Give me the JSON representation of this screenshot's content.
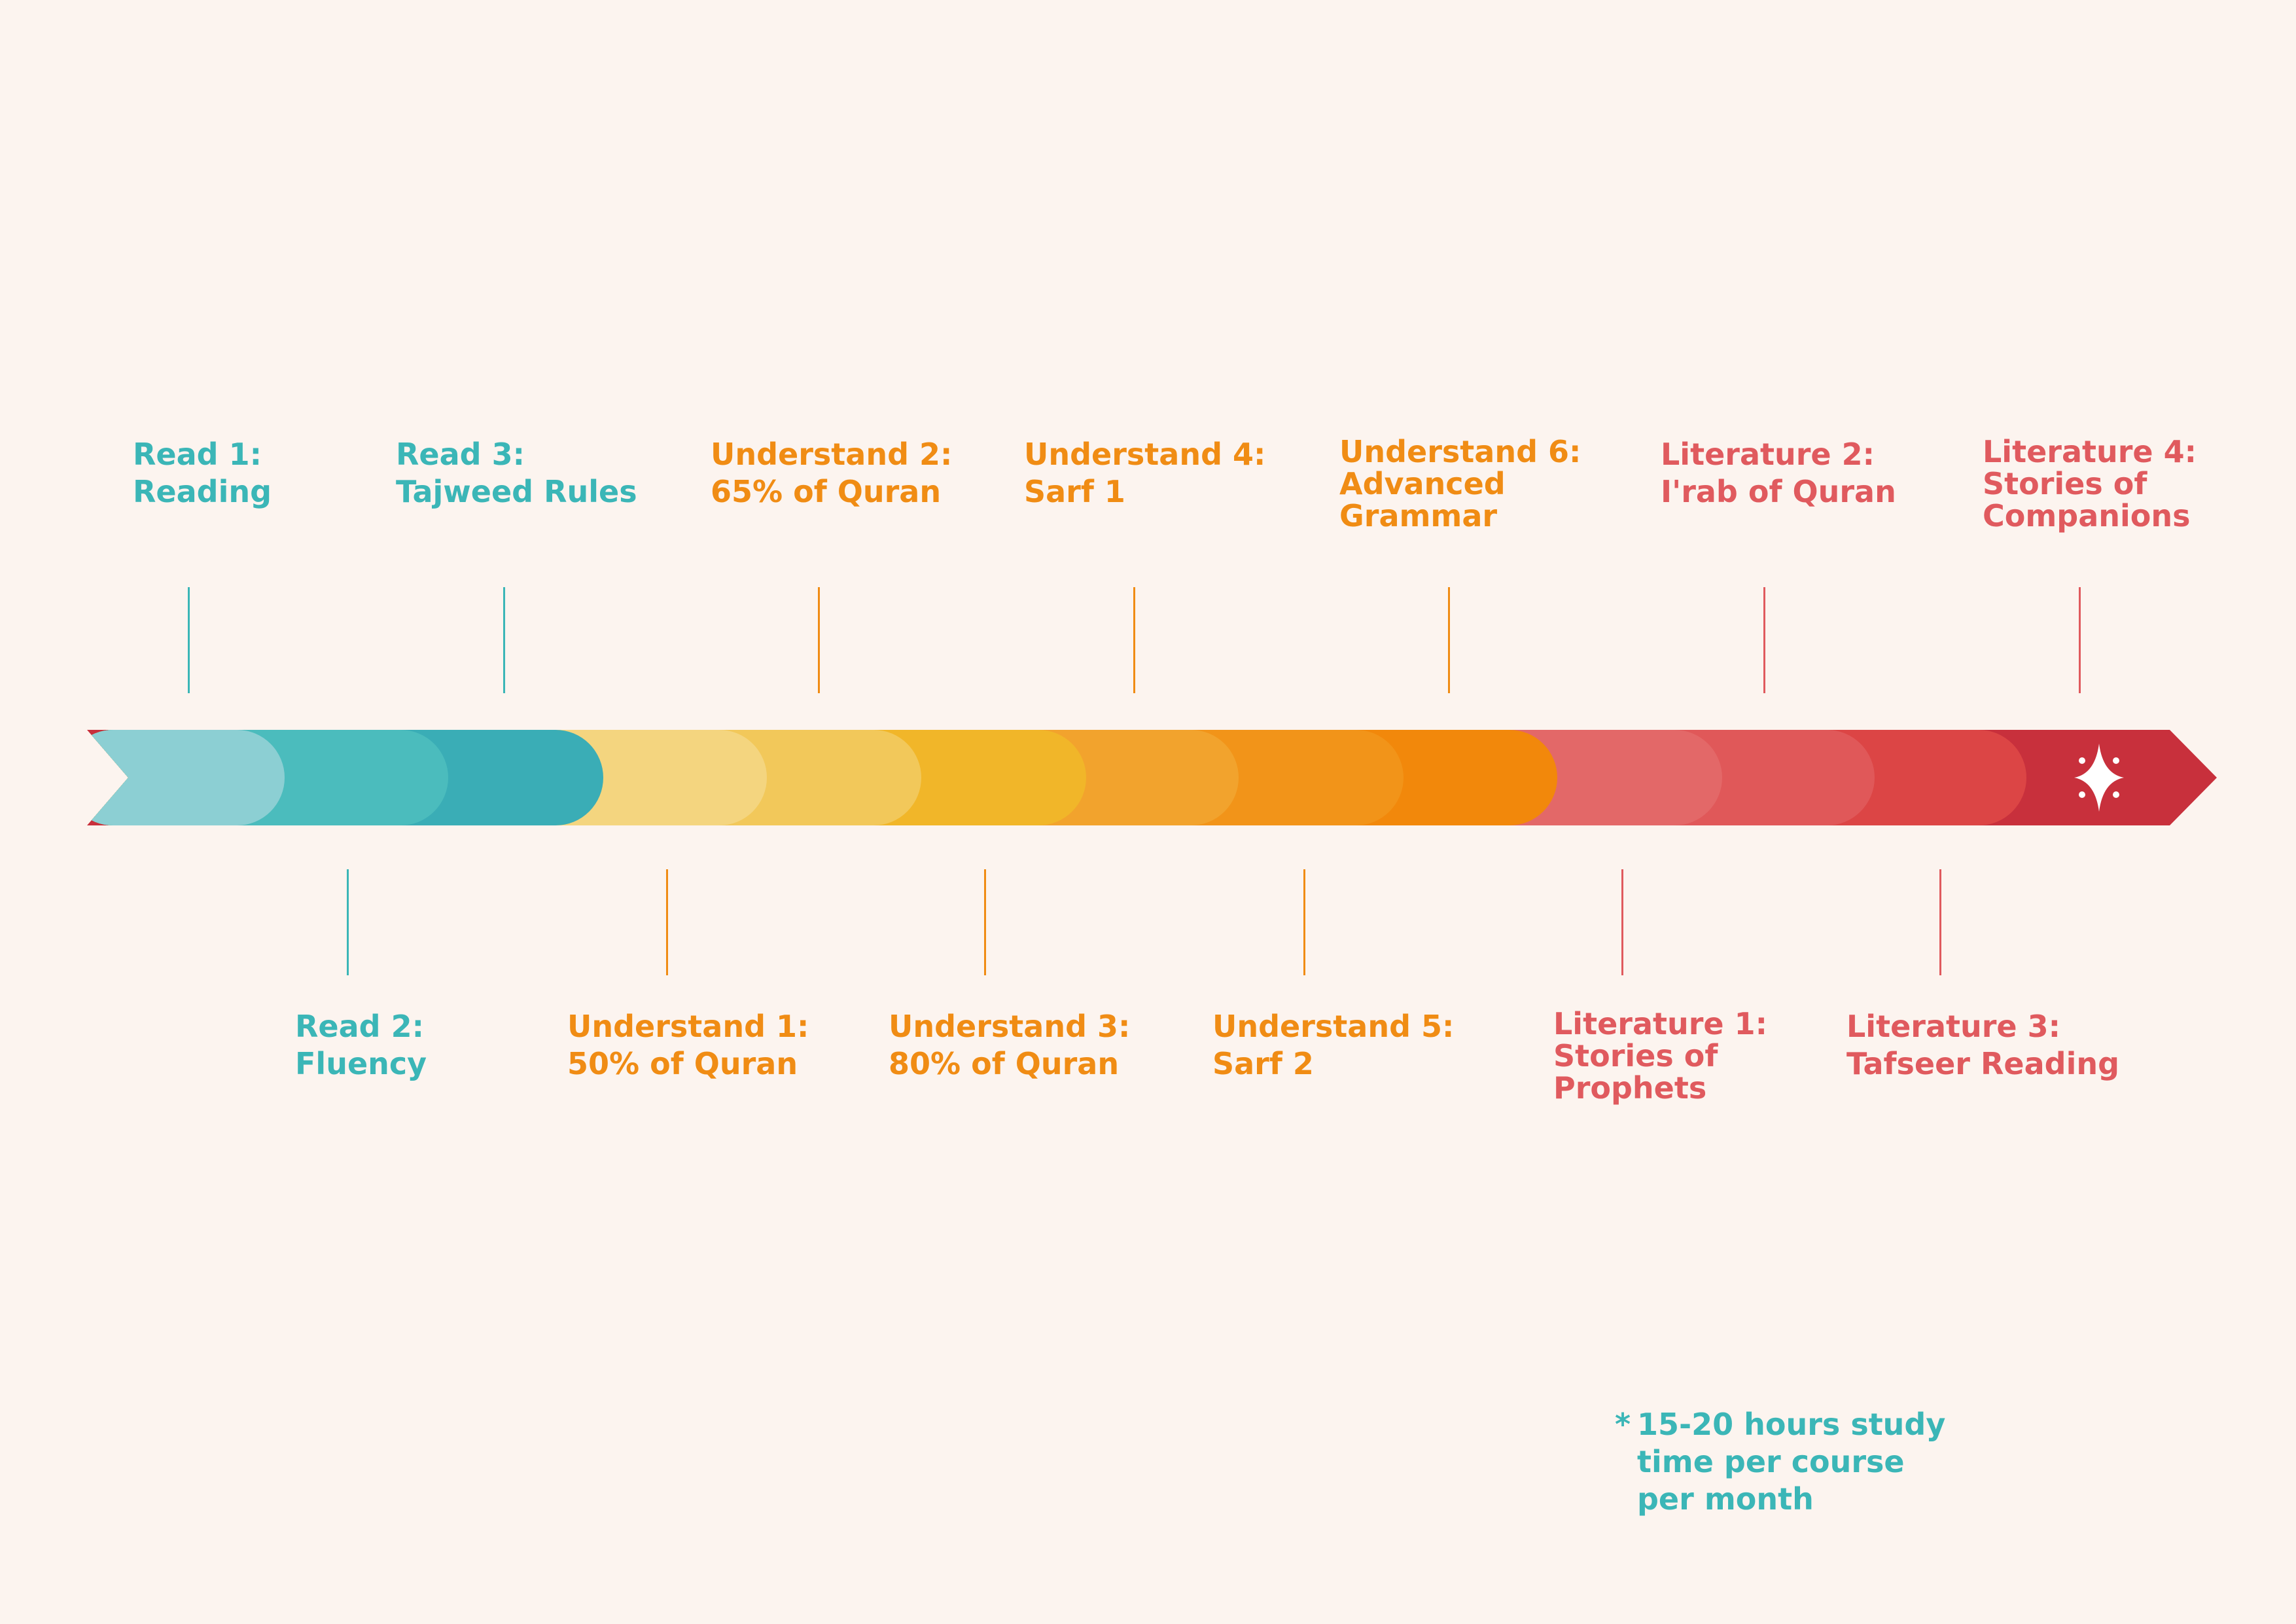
{
  "colors": {
    "background": "#fcf4ef",
    "read": "#3bb6b7",
    "understand": "#f08c14",
    "literature": "#e05a5e",
    "star": "#ffffff"
  },
  "arrow": {
    "segment_colors": [
      "#8ccfd3",
      "#4bbcbd",
      "#3aadb6",
      "#f4d57f",
      "#f2c85a",
      "#f1b629",
      "#f2a32d",
      "#f29419",
      "#f2880b",
      "#e36868",
      "#e05859",
      "#dc4545",
      "#c8303c"
    ],
    "end_icon": "sparkle-star-icon"
  },
  "milestones": [
    {
      "id": "read-1",
      "group": "read",
      "position": "above",
      "lines": [
        "Read 1:",
        "Reading"
      ]
    },
    {
      "id": "read-2",
      "group": "read",
      "position": "below",
      "lines": [
        "Read 2:",
        "Fluency"
      ]
    },
    {
      "id": "read-3",
      "group": "read",
      "position": "above",
      "lines": [
        "Read 3:",
        "Tajweed Rules"
      ]
    },
    {
      "id": "understand-1",
      "group": "understand",
      "position": "below",
      "lines": [
        "Understand 1:",
        "50% of Quran"
      ]
    },
    {
      "id": "understand-2",
      "group": "understand",
      "position": "above",
      "lines": [
        "Understand 2:",
        "65% of Quran"
      ]
    },
    {
      "id": "understand-3",
      "group": "understand",
      "position": "below",
      "lines": [
        "Understand 3:",
        "80% of Quran"
      ]
    },
    {
      "id": "understand-4",
      "group": "understand",
      "position": "above",
      "lines": [
        "Understand 4:",
        "Sarf 1"
      ]
    },
    {
      "id": "understand-5",
      "group": "understand",
      "position": "below",
      "lines": [
        "Understand 5:",
        "Sarf 2"
      ]
    },
    {
      "id": "understand-6",
      "group": "understand",
      "position": "above",
      "lines": [
        "Understand 6:",
        "Advanced",
        "Grammar"
      ]
    },
    {
      "id": "literature-1",
      "group": "literature",
      "position": "below",
      "lines": [
        "Literature 1:",
        "Stories of",
        "Prophets"
      ]
    },
    {
      "id": "literature-2",
      "group": "literature",
      "position": "above",
      "lines": [
        "Literature 2:",
        "I'rab of Quran"
      ]
    },
    {
      "id": "literature-3",
      "group": "literature",
      "position": "below",
      "lines": [
        "Literature 3:",
        "Tafseer Reading"
      ]
    },
    {
      "id": "literature-4",
      "group": "literature",
      "position": "above",
      "lines": [
        "Literature 4:",
        "Stories of",
        "Companions"
      ]
    }
  ],
  "footnote": {
    "marker": "*",
    "lines": [
      "15-20 hours study",
      "time per course",
      "per month"
    ]
  }
}
